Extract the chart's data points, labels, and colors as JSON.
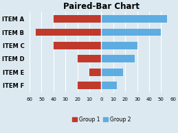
{
  "title": "Paired-Bar Chart",
  "categories": [
    "ITEM F",
    "ITEM E",
    "ITEM D",
    "ITEM C",
    "ITEM B",
    "ITEM A"
  ],
  "group1": [
    -20,
    -10,
    -20,
    -40,
    -55,
    -40
  ],
  "group2": [
    13,
    18,
    28,
    30,
    50,
    55
  ],
  "group1_color": "#c0392b",
  "group2_color": "#5dade2",
  "xlim": [
    -60,
    60
  ],
  "xticks": [
    -60,
    -50,
    -40,
    -30,
    -20,
    -10,
    0,
    10,
    20,
    30,
    40,
    50,
    60
  ],
  "xticklabels": [
    "60",
    "50",
    "40",
    "30",
    "20",
    "10",
    "0",
    "10",
    "20",
    "30",
    "40",
    "50",
    "60"
  ],
  "bar_height": 0.55,
  "bg_color": "#dce9f0",
  "plot_bg_color": "#dce9f0",
  "legend_label1": "Group 1",
  "legend_label2": "Group 2",
  "title_fontsize": 8.5,
  "label_fontsize": 6.0,
  "tick_fontsize": 5.0
}
